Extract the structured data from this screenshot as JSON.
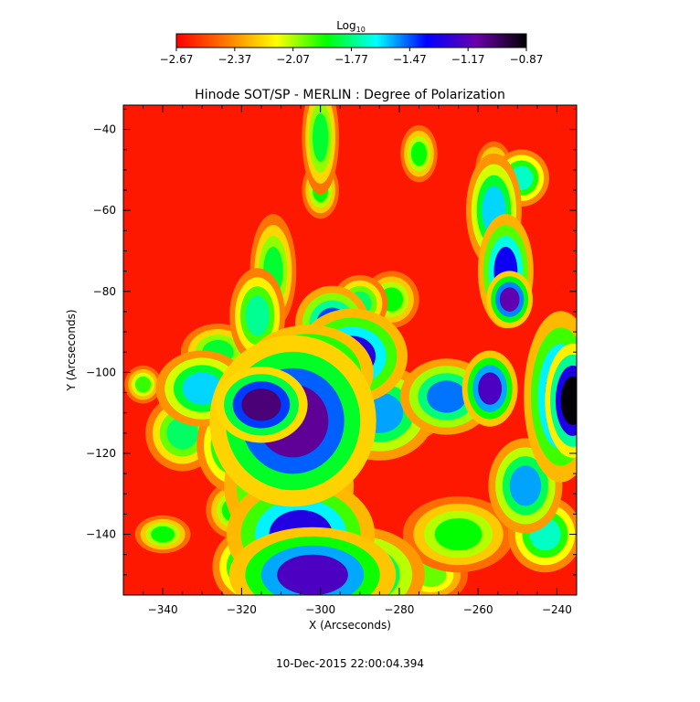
{
  "chart_data": {
    "type": "heatmap",
    "title": "Hinode SOT/SP - MERLIN : Degree of Polarization",
    "xlabel": "X (Arcseconds)",
    "ylabel": "Y (Arcseconds)",
    "xlim": [
      -350,
      -235
    ],
    "ylim": [
      -155,
      -34
    ],
    "xticks": [
      -340,
      -320,
      -300,
      -280,
      -260,
      -240
    ],
    "yticks": [
      -140,
      -120,
      -100,
      -80,
      -60,
      -40
    ],
    "colorbar": {
      "title_main": "Log",
      "title_sub": "10",
      "ticks": [
        "-2.67",
        "-2.37",
        "-2.07",
        "-1.77",
        "-1.47",
        "-1.17",
        "-0.87"
      ],
      "range": [
        -2.67,
        -0.87
      ],
      "colormap": [
        "#ff0000",
        "#ff7a00",
        "#ffff00",
        "#00ff00",
        "#00ffff",
        "#0000ff",
        "#6a00a8",
        "#000000"
      ]
    },
    "background_level": -2.62,
    "features": [
      {
        "x": -307,
        "y": -112,
        "rx": 9,
        "ry": 9,
        "value": -1.1
      },
      {
        "x": -315,
        "y": -108,
        "rx": 5,
        "ry": 4,
        "value": -1.05
      },
      {
        "x": -303,
        "y": -100,
        "rx": 7,
        "ry": 5,
        "value": -1.25
      },
      {
        "x": -292,
        "y": -96,
        "rx": 6,
        "ry": 5,
        "value": -1.3
      },
      {
        "x": -297,
        "y": -88,
        "rx": 4,
        "ry": 4,
        "value": -1.45
      },
      {
        "x": -308,
        "y": -128,
        "rx": 7,
        "ry": 7,
        "value": -1.35
      },
      {
        "x": -305,
        "y": -140,
        "rx": 8,
        "ry": 6,
        "value": -1.3
      },
      {
        "x": -302,
        "y": -150,
        "rx": 9,
        "ry": 5,
        "value": -1.2
      },
      {
        "x": -285,
        "y": -110,
        "rx": 6,
        "ry": 5,
        "value": -1.55
      },
      {
        "x": -330,
        "y": -104,
        "rx": 5,
        "ry": 4,
        "value": -1.6
      },
      {
        "x": -322,
        "y": -118,
        "rx": 4,
        "ry": 5,
        "value": -1.7
      },
      {
        "x": -335,
        "y": -115,
        "rx": 4,
        "ry": 4,
        "value": -1.8
      },
      {
        "x": -326,
        "y": -95,
        "rx": 4,
        "ry": 3,
        "value": -1.85
      },
      {
        "x": -316,
        "y": -86,
        "rx": 3,
        "ry": 5,
        "value": -1.75
      },
      {
        "x": -312,
        "y": -75,
        "rx": 2.5,
        "ry": 6,
        "value": -1.85
      },
      {
        "x": -290,
        "y": -150,
        "rx": 7,
        "ry": 5,
        "value": -1.55
      },
      {
        "x": -278,
        "y": -110,
        "rx": 4,
        "ry": 3,
        "value": -1.75
      },
      {
        "x": -268,
        "y": -106,
        "rx": 5,
        "ry": 4,
        "value": -1.5
      },
      {
        "x": -257,
        "y": -104,
        "rx": 3,
        "ry": 4,
        "value": -1.2
      },
      {
        "x": -248,
        "y": -128,
        "rx": 4,
        "ry": 5,
        "value": -1.55
      },
      {
        "x": -243,
        "y": -140,
        "rx": 4,
        "ry": 4,
        "value": -1.7
      },
      {
        "x": -265,
        "y": -140,
        "rx": 6,
        "ry": 4,
        "value": -1.9
      },
      {
        "x": -272,
        "y": -150,
        "rx": 4,
        "ry": 3,
        "value": -2.0
      },
      {
        "x": -256,
        "y": -60,
        "rx": 3,
        "ry": 6,
        "value": -1.6
      },
      {
        "x": -253,
        "y": -75,
        "rx": 3,
        "ry": 6,
        "value": -1.35
      },
      {
        "x": -252,
        "y": -82,
        "rx": 2.5,
        "ry": 3,
        "value": -1.15
      },
      {
        "x": -249,
        "y": -52,
        "rx": 3,
        "ry": 3,
        "value": -1.7
      },
      {
        "x": -256,
        "y": -50,
        "rx": 2,
        "ry": 3,
        "value": -1.9
      },
      {
        "x": -236,
        "y": -107,
        "rx": 3,
        "ry": 6,
        "value": -0.88
      },
      {
        "x": -239,
        "y": -106,
        "rx": 4,
        "ry": 9,
        "value": -1.3
      },
      {
        "x": -300,
        "y": -42,
        "rx": 2,
        "ry": 6,
        "value": -1.85
      },
      {
        "x": -300,
        "y": -55,
        "rx": 2,
        "ry": 3,
        "value": -1.9
      },
      {
        "x": -275,
        "y": -46,
        "rx": 2,
        "ry": 3,
        "value": -1.9
      },
      {
        "x": -282,
        "y": -82,
        "rx": 3,
        "ry": 3,
        "value": -1.9
      },
      {
        "x": -290,
        "y": -83,
        "rx": 3,
        "ry": 3,
        "value": -1.8
      },
      {
        "x": -340,
        "y": -140,
        "rx": 3,
        "ry": 2,
        "value": -1.9
      },
      {
        "x": -322,
        "y": -134,
        "rx": 3,
        "ry": 3,
        "value": -1.9
      },
      {
        "x": -345,
        "y": -103,
        "rx": 2,
        "ry": 2,
        "value": -1.95
      },
      {
        "x": -318,
        "y": -148,
        "rx": 4,
        "ry": 4,
        "value": -1.7
      }
    ],
    "grid": false
  },
  "footer": {
    "timestamp": "10-Dec-2015 22:00:04.394"
  }
}
